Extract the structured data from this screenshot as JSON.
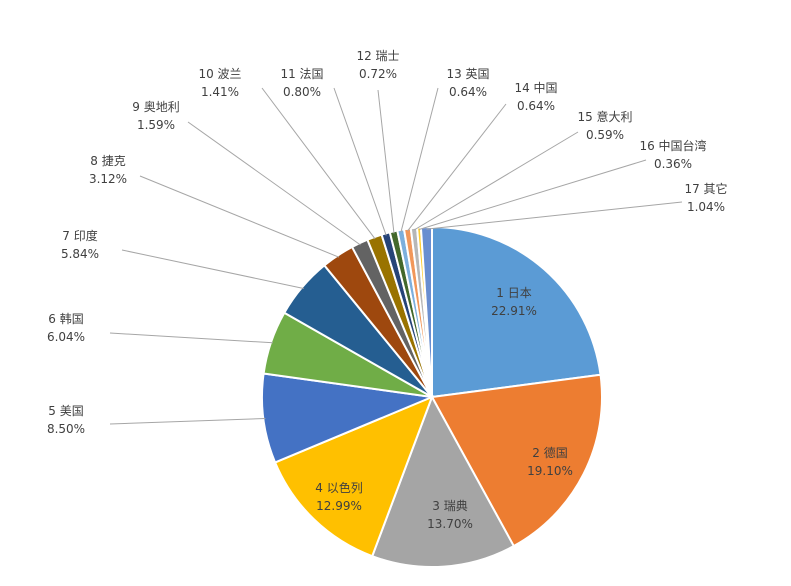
{
  "chart_data": {
    "type": "pie",
    "title": "",
    "unit": "%",
    "slices": [
      {
        "rank": "1",
        "name": "日本",
        "value": 22.91,
        "pct_label": "22.91%",
        "color": "#5B9BD5"
      },
      {
        "rank": "2",
        "name": "德国",
        "value": 19.1,
        "pct_label": "19.10%",
        "color": "#ED7D31"
      },
      {
        "rank": "3",
        "name": "瑞典",
        "value": 13.7,
        "pct_label": "13.70%",
        "color": "#A5A5A5"
      },
      {
        "rank": "4",
        "name": "以色列",
        "value": 12.99,
        "pct_label": "12.99%",
        "color": "#FFC000"
      },
      {
        "rank": "5",
        "name": "美国",
        "value": 8.5,
        "pct_label": "8.50%",
        "color": "#4472C4"
      },
      {
        "rank": "6",
        "name": "韩国",
        "value": 6.04,
        "pct_label": "6.04%",
        "color": "#70AD47"
      },
      {
        "rank": "7",
        "name": "印度",
        "value": 5.84,
        "pct_label": "5.84%",
        "color": "#255E91"
      },
      {
        "rank": "8",
        "name": "捷克",
        "value": 3.12,
        "pct_label": "3.12%",
        "color": "#9E480E"
      },
      {
        "rank": "9",
        "name": "奥地利",
        "value": 1.59,
        "pct_label": "1.59%",
        "color": "#636363"
      },
      {
        "rank": "10",
        "name": "波兰",
        "value": 1.41,
        "pct_label": "1.41%",
        "color": "#997300"
      },
      {
        "rank": "11",
        "name": "法国",
        "value": 0.8,
        "pct_label": "0.80%",
        "color": "#264478"
      },
      {
        "rank": "12",
        "name": "瑞士",
        "value": 0.72,
        "pct_label": "0.72%",
        "color": "#43682B"
      },
      {
        "rank": "13",
        "name": "英国",
        "value": 0.64,
        "pct_label": "0.64%",
        "color": "#7CAFDD"
      },
      {
        "rank": "14",
        "name": "中国",
        "value": 0.64,
        "pct_label": "0.64%",
        "color": "#F1975A"
      },
      {
        "rank": "15",
        "name": "意大利",
        "value": 0.59,
        "pct_label": "0.59%",
        "color": "#B7B7B7"
      },
      {
        "rank": "16",
        "name": "中国台湾",
        "value": 0.36,
        "pct_label": "0.36%",
        "color": "#FFCD33"
      },
      {
        "rank": "17",
        "name": "其它",
        "value": 1.04,
        "pct_label": "1.04%",
        "color": "#698ED0"
      }
    ]
  }
}
